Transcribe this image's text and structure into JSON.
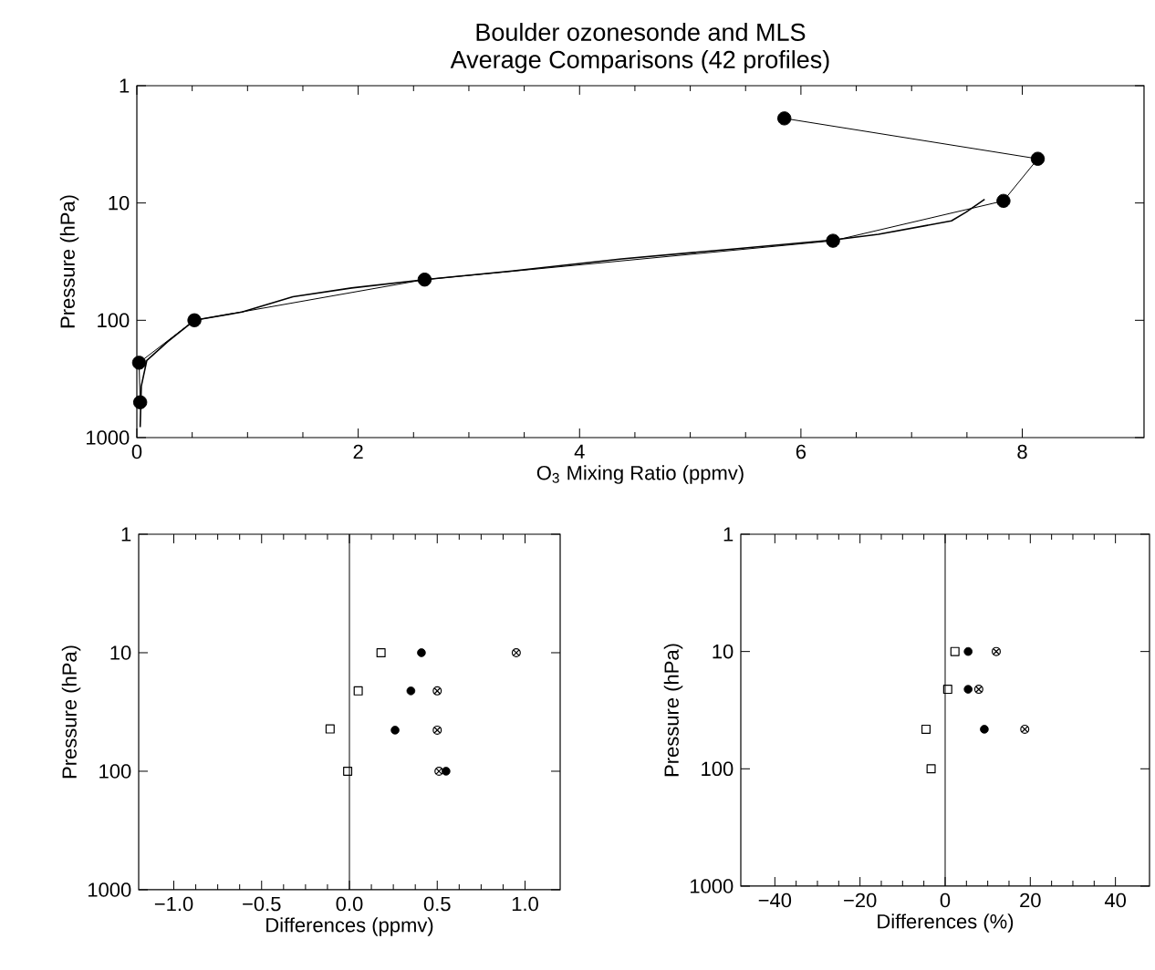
{
  "chart_data": [
    {
      "type": "line",
      "title": "Boulder ozonesonde and MLS",
      "subtitle": "Average Comparisons (42 profiles)",
      "xlabel": "O$_{3}$ Mixing Ratio (ppmv)",
      "ylabel": "Pressure (hPa)",
      "log": "y",
      "xlim": [
        0,
        9.1
      ],
      "ylim": [
        1000,
        1
      ],
      "xticks": [
        0,
        2,
        4,
        6,
        8
      ],
      "yticks": [
        1,
        10,
        100,
        1000
      ],
      "series": [
        {
          "type": "line",
          "color": "#000000",
          "marker": "none",
          "x": [
            0.03,
            0.04,
            0.09,
            0.28,
            0.52,
            0.95,
            1.41,
            1.94,
            2.6,
            3.39,
            4.38,
            5.38,
            6.29,
            6.7,
            7.36,
            7.49,
            7.66
          ],
          "values": [
            813,
            365,
            220,
            152,
            100,
            85,
            63,
            53,
            45,
            38,
            30,
            24.7,
            20.7,
            18.5,
            14.2,
            12,
            9.3
          ]
        },
        {
          "type": "line",
          "color": "#000000",
          "marker": "circle",
          "x": [
            5.85,
            8.14,
            7.83,
            6.29,
            2.6,
            0.52,
            0.02,
            0.03
          ],
          "values": [
            1.9,
            4.2,
            9.6,
            21,
            45,
            100,
            230,
            500
          ]
        }
      ]
    },
    {
      "type": "scatter",
      "xlabel": "Differences (ppmv)",
      "ylabel": "Pressure (hPa)",
      "log": "y",
      "xlim": [
        -1.2,
        1.2
      ],
      "ylim": [
        1000,
        1
      ],
      "xticks": [
        {
          "value": -1,
          "label": "−1.0"
        },
        {
          "value": -0.5,
          "label": "−0.5"
        },
        {
          "value": 0,
          "label": "0.0"
        },
        {
          "value": 0.5,
          "label": "0.5"
        },
        {
          "value": 1,
          "label": "1.0"
        }
      ],
      "yticks": [
        1,
        10,
        100,
        1000
      ],
      "ref_lines": [
        {
          "axis": "x",
          "value": 0,
          "color": "#000000"
        }
      ],
      "series": [
        {
          "color": "#000000",
          "marker": "square",
          "x": [
            0.18,
            0.05,
            -0.11,
            -0.01
          ],
          "values": [
            10,
            21,
            44,
            100
          ]
        },
        {
          "color": "#000000",
          "marker": "circle",
          "x": [
            0.41,
            0.35,
            0.26,
            0.55
          ],
          "values": [
            10,
            21,
            45,
            100
          ]
        },
        {
          "color": "#000000",
          "marker": "cross",
          "x": [
            0.95,
            0.5,
            0.5,
            0.51
          ],
          "values": [
            10,
            21,
            45,
            100
          ]
        }
      ]
    },
    {
      "type": "scatter",
      "xlabel": "Differences (%)",
      "ylabel": "Pressure (hPa)",
      "log": "y",
      "xlim": [
        -48,
        48
      ],
      "ylim": [
        1000,
        1
      ],
      "xticks": [
        {
          "value": -40,
          "label": "−40"
        },
        {
          "value": -20,
          "label": "−20"
        },
        0,
        20,
        40
      ],
      "yticks": [
        1,
        10,
        100,
        1000
      ],
      "ref_lines": [
        {
          "axis": "x",
          "value": 0,
          "color": "#000000"
        }
      ],
      "series": [
        {
          "color": "#000000",
          "marker": "square",
          "x": [
            2.3,
            0.6,
            -4.5,
            -3.3
          ],
          "values": [
            10,
            21,
            46,
            100
          ]
        },
        {
          "color": "#000000",
          "marker": "circle",
          "x": [
            5.4,
            5.4,
            9.2
          ],
          "values": [
            10,
            21,
            46
          ]
        },
        {
          "color": "#000000",
          "marker": "cross",
          "x": [
            12,
            7.9,
            18.7
          ],
          "values": [
            10,
            21,
            46
          ]
        }
      ]
    }
  ]
}
